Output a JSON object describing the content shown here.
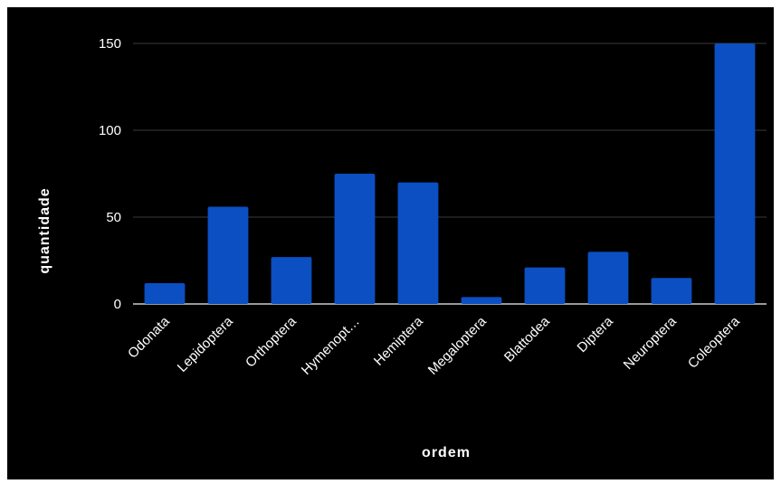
{
  "chart_data": {
    "type": "bar",
    "categories": [
      "Odonata",
      "Lepidoptera",
      "Orthoptera",
      "Hymenopt…",
      "Hemiptera",
      "Megaloptera",
      "Blattodea",
      "Diptera",
      "Neuroptera",
      "Coleoptera"
    ],
    "values": [
      12,
      56,
      27,
      75,
      70,
      4,
      21,
      30,
      15,
      150
    ],
    "xlabel": "ordem",
    "ylabel": "quantidade",
    "ylim": [
      0,
      150
    ],
    "yticks": [
      "0",
      "50",
      "100",
      "150"
    ],
    "grid": true,
    "colors": {
      "background": "#000000",
      "bar": "#0b4fc2",
      "grid": "#3a3a3a",
      "axis": "#cccccc",
      "text": "#ffffff"
    }
  }
}
